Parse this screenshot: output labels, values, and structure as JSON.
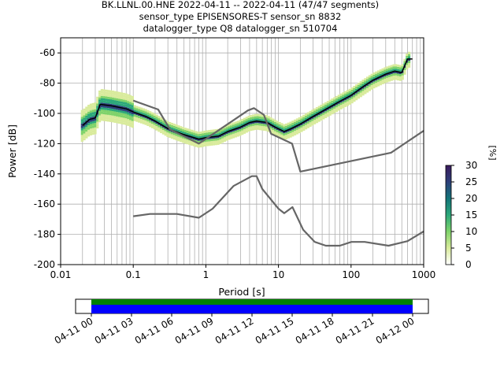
{
  "title_lines": [
    "BK.LLNL.00.HNE   2022-04-11 -- 2022-04-11  (47/47 segments)",
    "sensor_type EPISENSORES-T sensor_sn 8832",
    "datalogger_type Q8 datalogger_sn 510704"
  ],
  "chart_data": {
    "type": "line",
    "xlabel": "Period [s]",
    "ylabel": "Power [dB]",
    "xscale": "log",
    "xlim": [
      0.01,
      1000
    ],
    "ylim": [
      -200,
      -50
    ],
    "xticks": [
      "0.01",
      "0.1",
      "1",
      "10",
      "100",
      "1000"
    ],
    "yticks": [
      "-200",
      "-180",
      "-160",
      "-140",
      "-120",
      "-100",
      "-80",
      "-60"
    ],
    "grid": true,
    "colorbar": {
      "label": "[%]",
      "ticks": [
        "0",
        "5",
        "10",
        "15",
        "20",
        "25",
        "30"
      ],
      "range": [
        0,
        30
      ],
      "colors": [
        "#ffffff",
        "#d9eb9c",
        "#7fd36a",
        "#2ca87a",
        "#137479",
        "#2d3f7a",
        "#3a1a5c"
      ]
    },
    "series": [
      {
        "role": "median",
        "color": "#000000",
        "x": [
          0.02,
          0.025,
          0.03,
          0.035,
          0.05,
          0.08,
          0.1,
          0.15,
          0.2,
          0.3,
          0.5,
          0.8,
          1.0,
          1.5,
          2,
          3,
          4,
          5,
          7,
          9,
          12,
          15,
          20,
          30,
          50,
          70,
          100,
          150,
          200,
          300,
          400,
          500,
          600,
          700
        ],
        "y": [
          -108,
          -104,
          -103,
          -94,
          -95,
          -97,
          -99,
          -102,
          -105,
          -110,
          -114,
          -117,
          -116,
          -115,
          -112,
          -109,
          -106,
          -105,
          -106,
          -109,
          -112,
          -110,
          -107,
          -102,
          -96,
          -92,
          -88,
          -82,
          -78,
          -74,
          -72,
          -73,
          -64,
          -64
        ]
      },
      {
        "role": "noise-model-high",
        "color": "#666666",
        "x": [
          0.1,
          0.22,
          0.32,
          0.8,
          3.8,
          4.6,
          6.3,
          7.9,
          15.4,
          20,
          354.8,
          1000
        ],
        "y": [
          -91.5,
          -97.4,
          -110.5,
          -120,
          -98,
          -96.5,
          -101,
          -113.5,
          -120,
          -138.5,
          -126,
          -111.5
        ]
      },
      {
        "role": "noise-model-low",
        "color": "#666666",
        "x": [
          0.1,
          0.17,
          0.4,
          0.8,
          1.24,
          2.4,
          4.3,
          5.0,
          6.0,
          10.0,
          12.0,
          15.6,
          21.9,
          31.6,
          45.0,
          70.0,
          101.0,
          154.0,
          328.0,
          600.0,
          1000.0
        ],
        "y": [
          -168,
          -166.5,
          -166.5,
          -169,
          -163,
          -148,
          -141.5,
          -141.5,
          -150,
          -163,
          -166,
          -162,
          -177,
          -185,
          -187.5,
          -187.5,
          -185,
          -185,
          -187.5,
          -184.5,
          -178
        ]
      }
    ]
  },
  "time_axis": {
    "ticks": [
      "04-11 00",
      "04-11 03",
      "04-11 06",
      "04-11 09",
      "04-11 12",
      "04-11 15",
      "04-11 18",
      "04-11 21",
      "04-12 00"
    ],
    "bar_colors": [
      "#008000",
      "#0000ff"
    ]
  }
}
